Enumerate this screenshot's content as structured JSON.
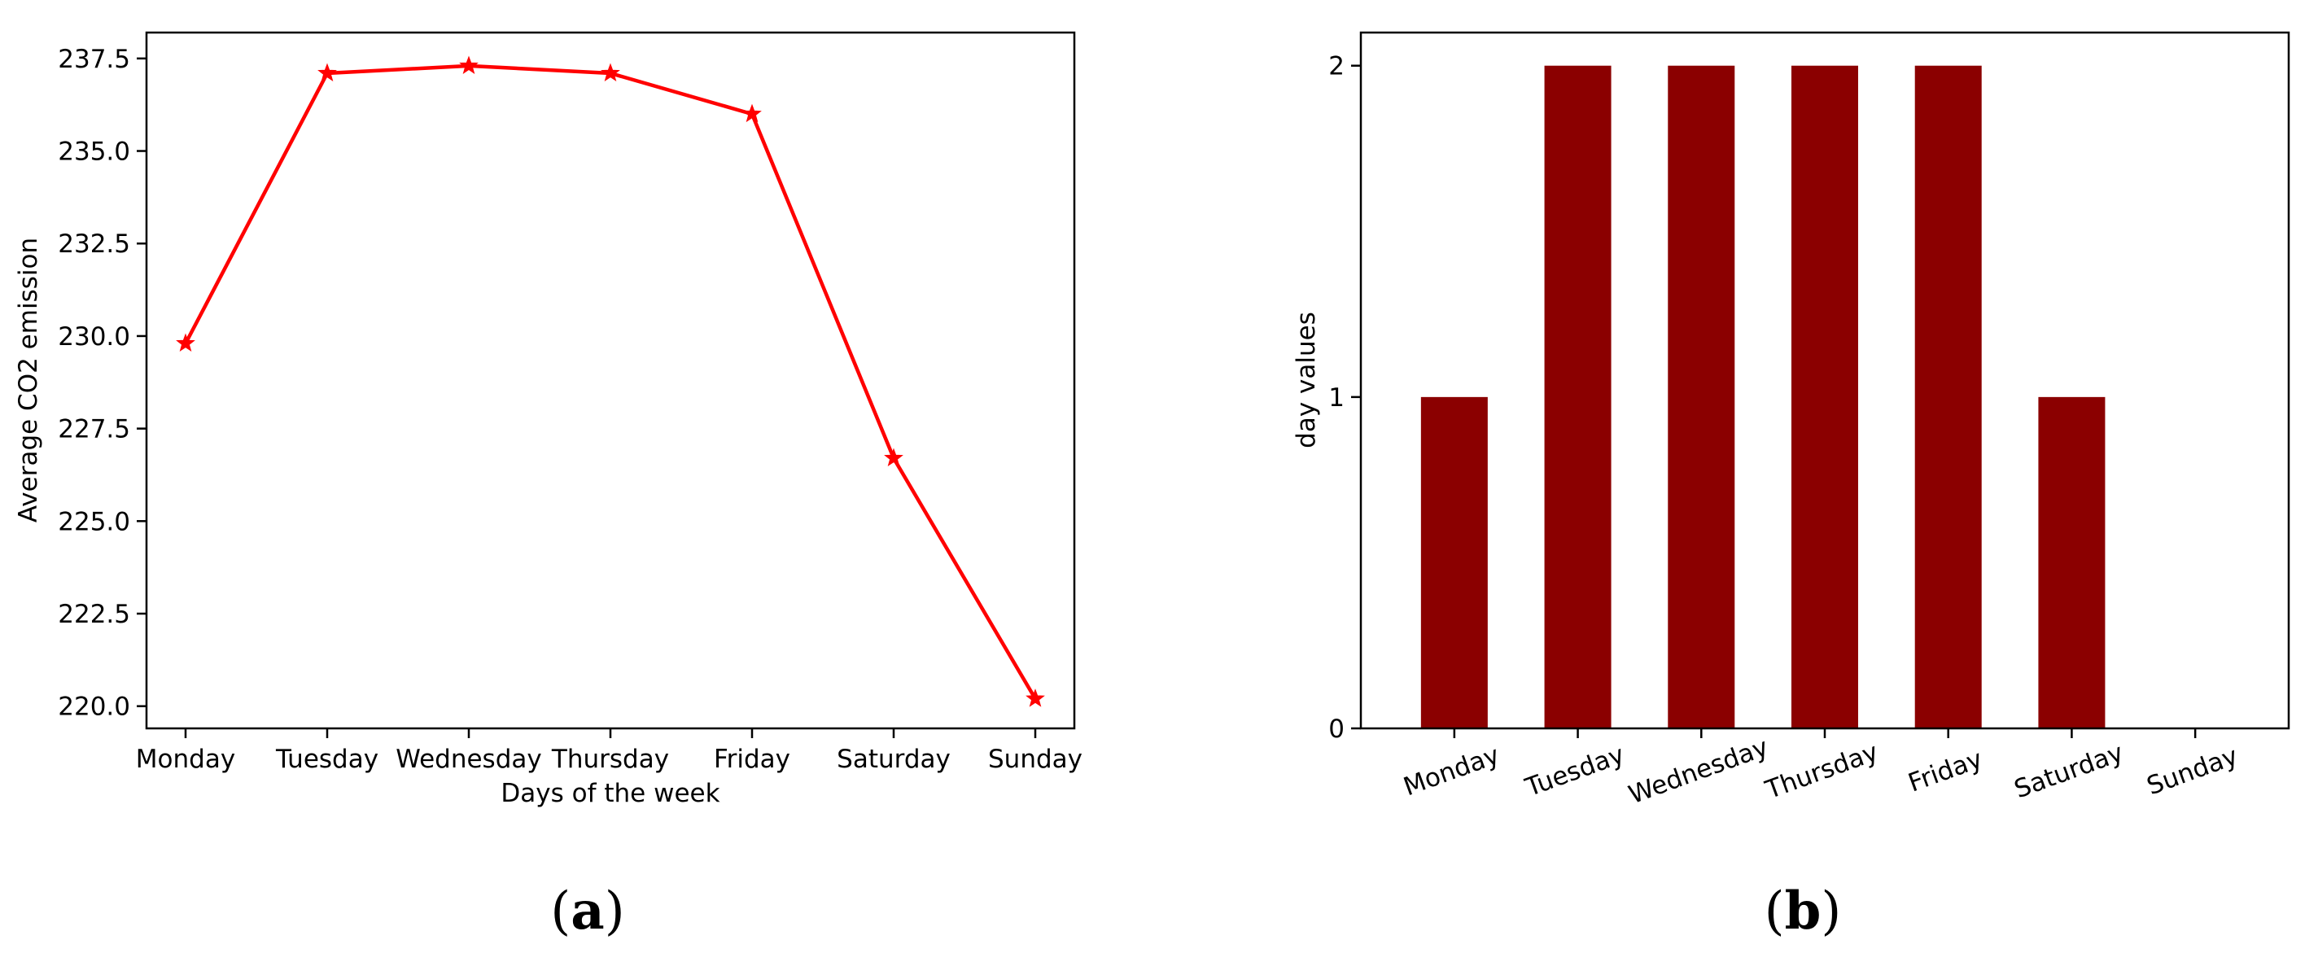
{
  "chart_data": [
    {
      "type": "line",
      "panel_label": {
        "open": "(",
        "letter": "a",
        "close": ")"
      },
      "xlabel": "Days of the week",
      "ylabel": "Average CO2 emission",
      "categories": [
        "Monday",
        "Tuesday",
        "Wednesday",
        "Thursday",
        "Friday",
        "Saturday",
        "Sunday"
      ],
      "series": [
        {
          "values": [
            229.8,
            237.1,
            237.3,
            237.1,
            236.0,
            226.7,
            220.2
          ],
          "color": "#ff0000",
          "marker": "star"
        }
      ],
      "yticks": [
        "220.0",
        "222.5",
        "225.0",
        "227.5",
        "230.0",
        "232.5",
        "235.0",
        "237.5"
      ],
      "ylim": [
        219.4,
        238.2
      ],
      "grid": false
    },
    {
      "type": "bar",
      "panel_label": {
        "open": "(",
        "letter": "b",
        "close": ")"
      },
      "xlabel": "",
      "ylabel": "day values",
      "categories": [
        "Monday",
        "Tuesday",
        "Wednesday",
        "Thursday",
        "Friday",
        "Saturday",
        "Sunday"
      ],
      "values": [
        1,
        2,
        2,
        2,
        2,
        1,
        0
      ],
      "color": "#8b0000",
      "yticks": [
        "0",
        "1",
        "2"
      ],
      "ylim": [
        0,
        2.1
      ],
      "grid": false
    }
  ]
}
